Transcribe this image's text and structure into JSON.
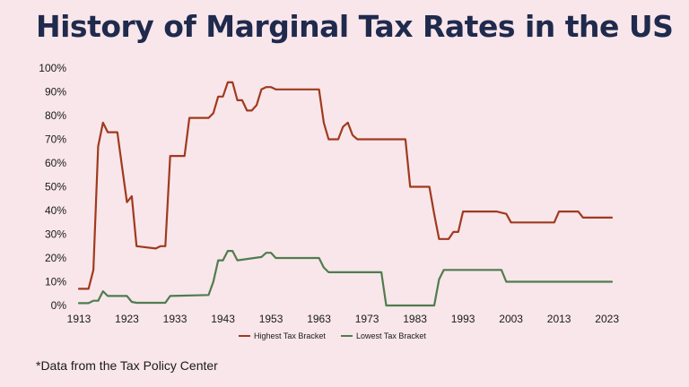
{
  "page": {
    "title": "History of Marginal Tax Rates in the US",
    "footnote": "*Data from the Tax Policy Center"
  },
  "colors": {
    "background": "#f8e6ea",
    "title": "#1f2a4d",
    "highest": "#a03a1e",
    "lowest": "#4f7c4f"
  },
  "chart_data": {
    "type": "line",
    "title": "History of Marginal Tax Rates in the US",
    "xlabel": "",
    "ylabel": "",
    "xlim": [
      1913,
      2024
    ],
    "ylim": [
      0,
      100
    ],
    "grid": false,
    "legend_position": "bottom",
    "x_ticks": [
      1913,
      1923,
      1933,
      1943,
      1953,
      1963,
      1973,
      1983,
      1993,
      2003,
      2013,
      2023
    ],
    "y_ticks": [
      "0%",
      "10%",
      "20%",
      "30%",
      "40%",
      "50%",
      "60%",
      "70%",
      "80%",
      "90%",
      "100%"
    ],
    "series": [
      {
        "name": "Highest Tax Bracket",
        "color": "#a03a1e",
        "points": [
          [
            1913,
            7
          ],
          [
            1915,
            7
          ],
          [
            1916,
            15
          ],
          [
            1917,
            67
          ],
          [
            1918,
            77
          ],
          [
            1919,
            73
          ],
          [
            1921,
            73
          ],
          [
            1922,
            58
          ],
          [
            1923,
            43.5
          ],
          [
            1924,
            46
          ],
          [
            1925,
            25
          ],
          [
            1929,
            24
          ],
          [
            1930,
            25
          ],
          [
            1931,
            25
          ],
          [
            1932,
            63
          ],
          [
            1935,
            63
          ],
          [
            1936,
            79
          ],
          [
            1940,
            79
          ],
          [
            1941,
            81
          ],
          [
            1942,
            88
          ],
          [
            1943,
            88
          ],
          [
            1944,
            94
          ],
          [
            1945,
            94
          ],
          [
            1946,
            86.45
          ],
          [
            1947,
            86.45
          ],
          [
            1948,
            82.13
          ],
          [
            1949,
            82.13
          ],
          [
            1950,
            84.36
          ],
          [
            1951,
            91
          ],
          [
            1952,
            92
          ],
          [
            1953,
            92
          ],
          [
            1954,
            91
          ],
          [
            1963,
            91
          ],
          [
            1964,
            77
          ],
          [
            1965,
            70
          ],
          [
            1967,
            70
          ],
          [
            1968,
            75.25
          ],
          [
            1969,
            77
          ],
          [
            1970,
            71.75
          ],
          [
            1971,
            70
          ],
          [
            1981,
            70
          ],
          [
            1982,
            50
          ],
          [
            1986,
            50
          ],
          [
            1987,
            38.5
          ],
          [
            1988,
            28
          ],
          [
            1990,
            28
          ],
          [
            1991,
            31
          ],
          [
            1992,
            31
          ],
          [
            1993,
            39.6
          ],
          [
            2000,
            39.6
          ],
          [
            2001,
            39.1
          ],
          [
            2002,
            38.6
          ],
          [
            2003,
            35
          ],
          [
            2012,
            35
          ],
          [
            2013,
            39.6
          ],
          [
            2017,
            39.6
          ],
          [
            2018,
            37
          ],
          [
            2024,
            37
          ]
        ]
      },
      {
        "name": "Lowest Tax Bracket",
        "color": "#4f7c4f",
        "points": [
          [
            1913,
            1
          ],
          [
            1915,
            1
          ],
          [
            1916,
            2
          ],
          [
            1917,
            2
          ],
          [
            1918,
            6
          ],
          [
            1919,
            4
          ],
          [
            1923,
            4
          ],
          [
            1924,
            1.5
          ],
          [
            1925,
            1.125
          ],
          [
            1931,
            1.125
          ],
          [
            1932,
            4
          ],
          [
            1940,
            4.4
          ],
          [
            1941,
            10
          ],
          [
            1942,
            19
          ],
          [
            1943,
            19
          ],
          [
            1944,
            23
          ],
          [
            1945,
            23
          ],
          [
            1946,
            19
          ],
          [
            1951,
            20.4
          ],
          [
            1952,
            22.2
          ],
          [
            1953,
            22.2
          ],
          [
            1954,
            20
          ],
          [
            1963,
            20
          ],
          [
            1964,
            16
          ],
          [
            1965,
            14
          ],
          [
            1976,
            14
          ],
          [
            1977,
            0
          ],
          [
            1987,
            0
          ],
          [
            1988,
            11
          ],
          [
            1989,
            15
          ],
          [
            2000,
            15
          ],
          [
            2001,
            15
          ],
          [
            2002,
            10
          ],
          [
            2024,
            10
          ]
        ]
      }
    ]
  }
}
